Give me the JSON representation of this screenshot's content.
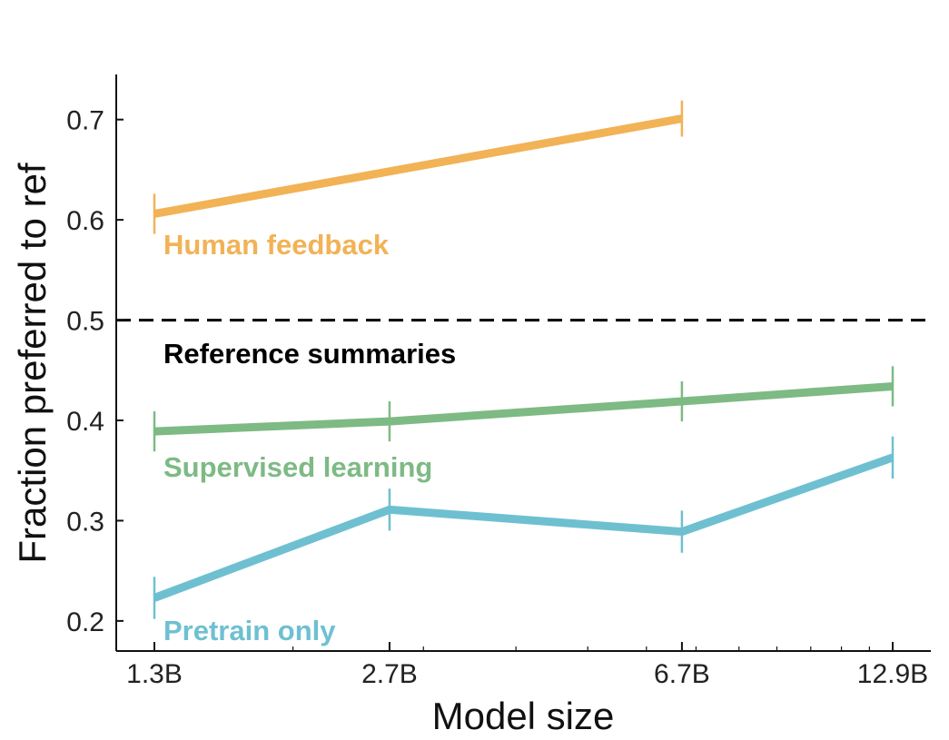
{
  "chart_data": {
    "type": "line",
    "xlabel": "Model size",
    "ylabel": "Fraction preferred to ref",
    "x_scale": "log",
    "x_ticks": [
      "1.3B",
      "2.7B",
      "6.7B",
      "12.9B"
    ],
    "x_values": [
      1.3,
      2.7,
      6.7,
      12.9
    ],
    "xlim": [
      1.3,
      12.9
    ],
    "ylim": [
      0.17,
      0.745
    ],
    "y_ticks": [
      0.2,
      0.3,
      0.4,
      0.5,
      0.6,
      0.7
    ],
    "y_tick_labels": [
      "0.2",
      "0.3",
      "0.4",
      "0.5",
      "0.6",
      "0.7"
    ],
    "grid": false,
    "reference_line": {
      "y": 0.5,
      "label": "Reference summaries",
      "color": "#000000",
      "style": "dashed"
    },
    "series": [
      {
        "name": "Human feedback",
        "color": "#F2B256",
        "x": [
          1.3,
          6.7
        ],
        "values": [
          0.606,
          0.701
        ],
        "error": [
          0.02,
          0.018
        ]
      },
      {
        "name": "Supervised learning",
        "color": "#7DBA84",
        "x": [
          1.3,
          2.7,
          6.7,
          12.9
        ],
        "values": [
          0.389,
          0.399,
          0.419,
          0.434
        ],
        "error": [
          0.02,
          0.02,
          0.02,
          0.02
        ]
      },
      {
        "name": "Pretrain only",
        "color": "#6EC0D1",
        "x": [
          1.3,
          2.7,
          6.7,
          12.9
        ],
        "values": [
          0.223,
          0.311,
          0.289,
          0.363
        ],
        "error": [
          0.021,
          0.021,
          0.021,
          0.021
        ]
      }
    ]
  }
}
